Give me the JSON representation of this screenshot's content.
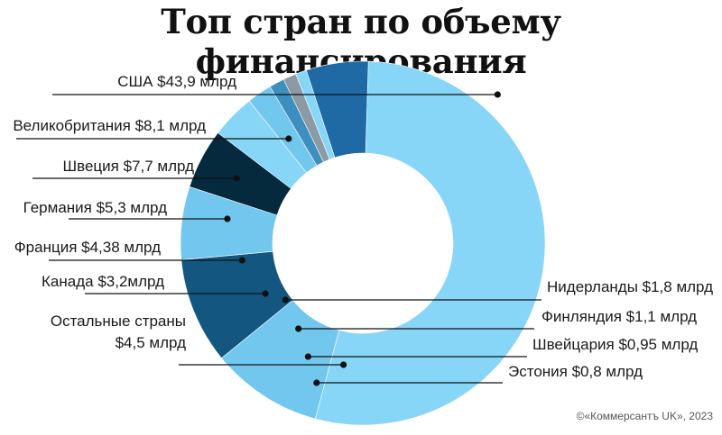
{
  "title": "Топ стран по объему финансирования",
  "credit": "©«Коммерсантъ UK», 2023",
  "chart_data": {
    "type": "pie",
    "variant": "donut",
    "unit": "млрд долларов",
    "slices": [
      {
        "name": "США",
        "label": "США $43,9 млрд",
        "value": 43.9,
        "color": "#87d6f7"
      },
      {
        "name": "Великобритания",
        "label": "Великобритания $8,1 млрд",
        "value": 8.1,
        "color": "#72c7ee"
      },
      {
        "name": "Швеция",
        "label": "Швеция $7,7 млрд",
        "value": 7.7,
        "color": "#135781"
      },
      {
        "name": "Германия",
        "label": "Германия $5,3 млрд",
        "value": 5.3,
        "color": "#72c7ee"
      },
      {
        "name": "Франция",
        "label": "Франция $4,38 млрд",
        "value": 4.38,
        "color": "#052a3e"
      },
      {
        "name": "Канада",
        "label": "Канада $3,2млрд",
        "value": 3.2,
        "color": "#87d6f7"
      },
      {
        "name": "Нидерланды",
        "label": "Нидерланды $1,8 млрд",
        "value": 1.8,
        "color": "#72c7ee"
      },
      {
        "name": "Финляндия",
        "label": "Финляндия $1,1 млрд",
        "value": 1.1,
        "color": "#3d8fbf"
      },
      {
        "name": "Швейцария",
        "label": "Швейцария $0,95 млрд",
        "value": 0.95,
        "color": "#8c9aa3"
      },
      {
        "name": "Эстония",
        "label": "Эстония $0,8 млрд",
        "value": 0.8,
        "color": "#87d6f7"
      },
      {
        "name": "Остальные страны",
        "label_lines": [
          "Остальные страны",
          "$4,5 млрд"
        ],
        "value": 4.5,
        "color": "#1f6aa5"
      }
    ],
    "legend": "none"
  }
}
